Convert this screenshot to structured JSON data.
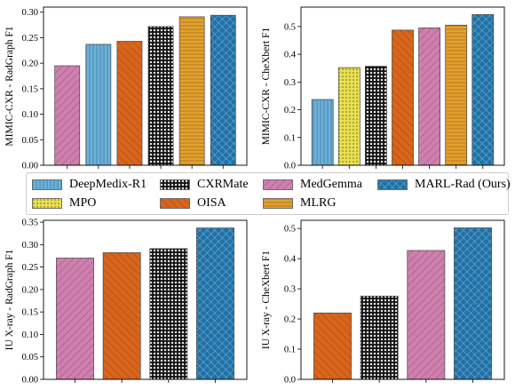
{
  "palette": {
    "DeepMedix-R1": "#6db0d8",
    "MPO": "#e8df52",
    "CXRMate": "#111111",
    "OISA": "#d9651c",
    "MedGemma": "#cf7fae",
    "MLRG": "#e2a12e",
    "MARL-Rad (Ours)": "#1f72a8"
  },
  "legend": {
    "items": [
      {
        "label": "DeepMedix-R1",
        "swatch": "DeepMedix-R1",
        "pattern": "vertical"
      },
      {
        "label": "CXRMate",
        "swatch": "CXRMate",
        "pattern": "grid"
      },
      {
        "label": "MedGemma",
        "swatch": "MedGemma",
        "pattern": "diag"
      },
      {
        "label": "MARL-Rad (Ours)",
        "swatch": "MARL-Rad (Ours)",
        "pattern": "cross"
      },
      {
        "label": "MPO",
        "swatch": "MPO",
        "pattern": "dots"
      },
      {
        "label": "OISA",
        "swatch": "OISA",
        "pattern": "diag-r"
      },
      {
        "label": "MLRG",
        "swatch": "MLRG",
        "pattern": "horizontal"
      }
    ]
  },
  "chart_data": [
    {
      "type": "bar",
      "ylabel": "MIMIC-CXR - RadGraph F1",
      "categories": [
        "MedGemma",
        "DeepMedix-R1",
        "OISA",
        "CXRMate",
        "MLRG",
        "MARL-Rad (Ours)"
      ],
      "values": [
        0.195,
        0.237,
        0.243,
        0.272,
        0.291,
        0.294
      ],
      "ylim": [
        0,
        0.31
      ],
      "yticks": [
        "0.00",
        "0.05",
        "0.10",
        "0.15",
        "0.20",
        "0.25",
        "0.30"
      ]
    },
    {
      "type": "bar",
      "ylabel": "MIMIC-CXR - CheXbert F1",
      "categories": [
        "DeepMedix-R1",
        "MPO",
        "CXRMate",
        "OISA",
        "MedGemma",
        "MLRG",
        "MARL-Rad (Ours)"
      ],
      "values": [
        0.237,
        0.352,
        0.357,
        0.487,
        0.495,
        0.505,
        0.543
      ],
      "ylim": [
        0,
        0.57
      ],
      "yticks": [
        "0.0",
        "0.1",
        "0.2",
        "0.3",
        "0.4",
        "0.5"
      ]
    },
    {
      "type": "bar",
      "ylabel": "IU X-ray - RadGraph F1",
      "categories": [
        "MedGemma",
        "OISA",
        "CXRMate",
        "MARL-Rad (Ours)"
      ],
      "values": [
        0.27,
        0.282,
        0.291,
        0.337
      ],
      "ylim": [
        0,
        0.354
      ],
      "yticks": [
        "0.00",
        "0.05",
        "0.10",
        "0.15",
        "0.20",
        "0.25",
        "0.30",
        "0.35"
      ]
    },
    {
      "type": "bar",
      "ylabel": "IU X-ray - CheXbert F1",
      "categories": [
        "OISA",
        "CXRMate",
        "MedGemma",
        "MARL-Rad (Ours)"
      ],
      "values": [
        0.22,
        0.276,
        0.427,
        0.502
      ],
      "ylim": [
        0,
        0.527
      ],
      "yticks": [
        "0.0",
        "0.1",
        "0.2",
        "0.3",
        "0.4",
        "0.5"
      ]
    }
  ]
}
